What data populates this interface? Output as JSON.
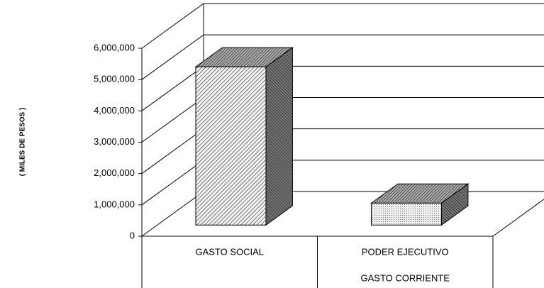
{
  "chart_data": {
    "type": "bar3d",
    "y_axis_label": "( MILES DE PESOS )",
    "categories": [
      "GASTO SOCIAL",
      "PODER EJECUTIVO"
    ],
    "category_groups": [
      null,
      "GASTO CORRIENTE"
    ],
    "values": [
      5050000,
      700000
    ],
    "ylim": [
      0,
      6000000
    ],
    "yticks": [
      0,
      {
        "value": 1000000,
        "label": "1,000,000"
      },
      {
        "value": 2000000,
        "label": "2,000,000"
      },
      {
        "value": 3000000,
        "label": "3,000,000"
      },
      {
        "value": 4000000,
        "label": "4,000,000"
      },
      {
        "value": 5000000,
        "label": "5,000,000"
      },
      {
        "value": 6000000,
        "label": "6,000,000"
      }
    ],
    "grid": true
  }
}
